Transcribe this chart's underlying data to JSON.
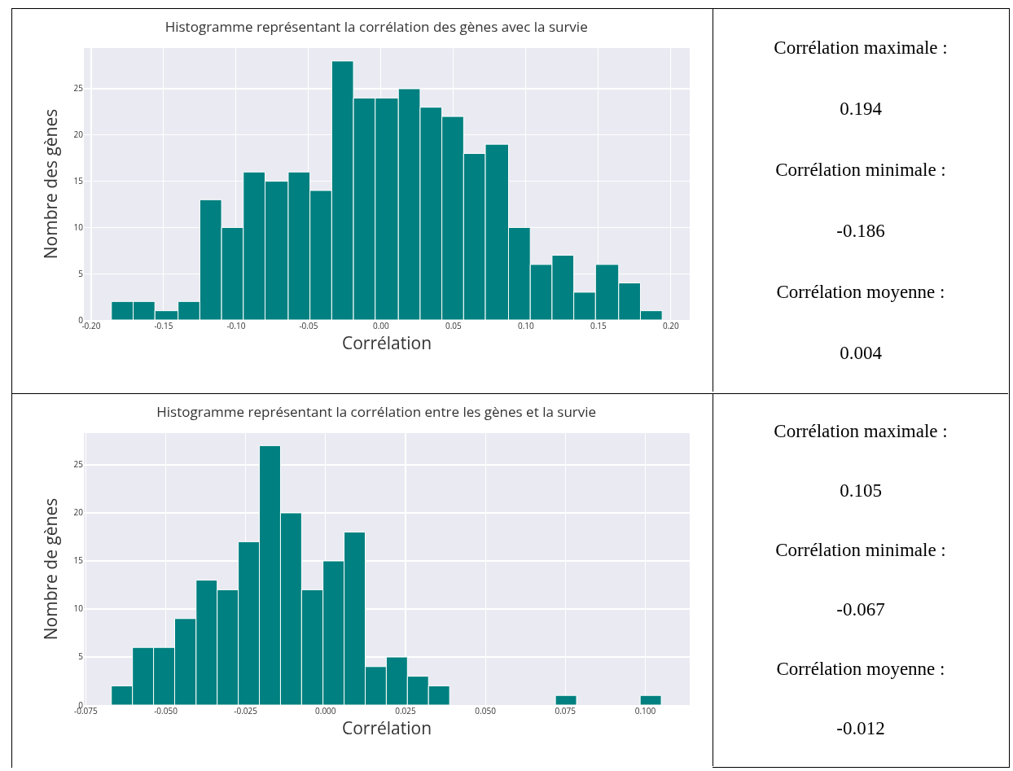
{
  "chart_data": [
    {
      "type": "histogram",
      "title": "Histogramme représentant la corrélation des gènes avec la survie",
      "xlabel": "Corrélation",
      "ylabel": "Nombre des gènes",
      "color": "#008080",
      "bins": [
        -0.186,
        -0.171,
        -0.156,
        -0.14,
        -0.125,
        -0.11,
        -0.095,
        -0.08,
        -0.064,
        -0.049,
        -0.034,
        -0.019,
        -0.004,
        0.012,
        0.027,
        0.042,
        0.057,
        0.072,
        0.088,
        0.103,
        0.118,
        0.133,
        0.148,
        0.164,
        0.179,
        0.194
      ],
      "values": [
        2,
        2,
        1,
        2,
        13,
        10,
        16,
        15,
        16,
        14,
        28,
        24,
        24,
        25,
        23,
        22,
        18,
        19,
        10,
        6,
        7,
        3,
        6,
        4,
        1
      ],
      "xlim": [
        -0.205,
        0.213
      ],
      "ylim": [
        0,
        29.4
      ],
      "xticks": [
        {
          "value": -0.2,
          "label": "-0.20"
        },
        {
          "value": -0.15,
          "label": "-0.15"
        },
        {
          "value": -0.1,
          "label": "-0.10"
        },
        {
          "value": -0.05,
          "label": "-0.05"
        },
        {
          "value": 0,
          "label": "0.00"
        },
        {
          "value": 0.05,
          "label": "0.05"
        },
        {
          "value": 0.1,
          "label": "0.10"
        },
        {
          "value": 0.15,
          "label": "0.15"
        },
        {
          "value": 0.2,
          "label": "0.20"
        }
      ],
      "yticks": [
        0,
        5,
        10,
        15,
        20,
        25
      ],
      "grid": true,
      "legend": false
    },
    {
      "type": "other",
      "annotations": [
        "Corrélation maximale :",
        "0.194",
        "Corrélation minimale :",
        "-0.186",
        "Corrélation moyenne :",
        "0.004"
      ]
    },
    {
      "type": "histogram",
      "title": "Histogramme représentant la corrélation entre les gènes et la survie",
      "xlabel": "Corrélation",
      "ylabel": "Nombre de gènes",
      "color": "#008080",
      "bins": [
        -0.067,
        -0.0604,
        -0.0538,
        -0.0472,
        -0.0405,
        -0.0339,
        -0.0273,
        -0.0207,
        -0.0141,
        -0.0075,
        -0.0008,
        0.0058,
        0.0124,
        0.019,
        0.0256,
        0.0322,
        0.0388,
        0.0455,
        0.0521,
        0.0587,
        0.0653,
        0.0719,
        0.0785,
        0.0851,
        0.0917,
        0.0984,
        0.105
      ],
      "values": [
        2,
        6,
        6,
        9,
        13,
        12,
        17,
        27,
        20,
        12,
        15,
        18,
        4,
        5,
        3,
        2,
        0,
        0,
        0,
        0,
        0,
        1,
        0,
        0,
        0,
        1
      ],
      "xlim": [
        -0.0756,
        0.1139
      ],
      "ylim": [
        0,
        28.3
      ],
      "xticks": [
        {
          "value": -0.075,
          "label": "-0.075"
        },
        {
          "value": -0.05,
          "label": "-0.050"
        },
        {
          "value": -0.025,
          "label": "-0.025"
        },
        {
          "value": 0,
          "label": "0.000"
        },
        {
          "value": 0.025,
          "label": "0.025"
        },
        {
          "value": 0.05,
          "label": "0.050"
        },
        {
          "value": 0.075,
          "label": "0.075"
        },
        {
          "value": 0.1,
          "label": "0.100"
        }
      ],
      "yticks": [
        0,
        5,
        10,
        15,
        20,
        25
      ],
      "grid": true,
      "legend": false
    },
    {
      "type": "other",
      "annotations": [
        "Corrélation maximale :",
        "0.105",
        "Corrélation minimale :",
        "-0.067",
        "Corrélation moyenne :",
        "-0.012"
      ]
    }
  ]
}
